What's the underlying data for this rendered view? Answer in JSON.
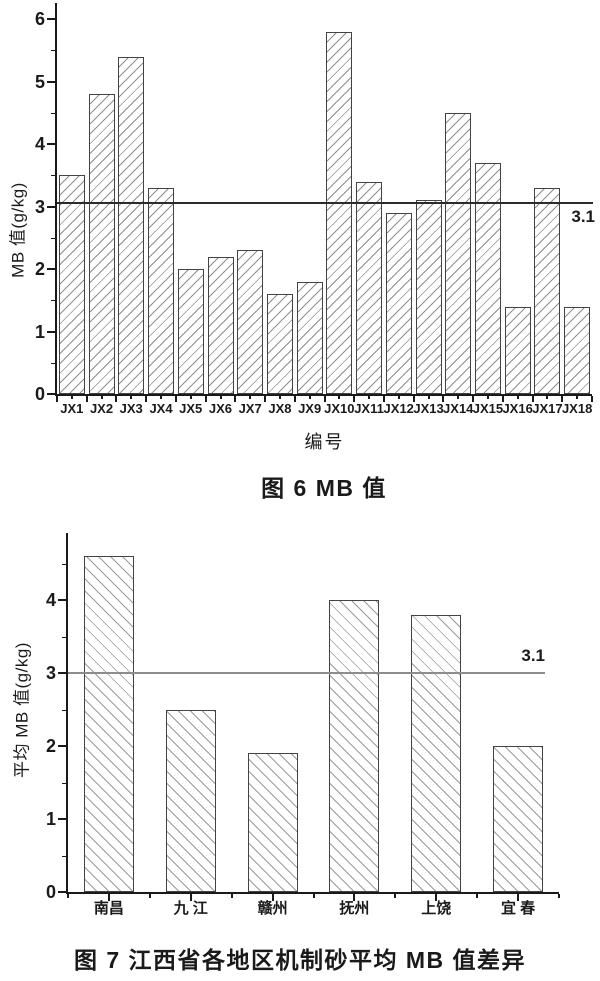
{
  "chart_data": [
    {
      "type": "bar",
      "title": "图 6  MB 值",
      "xlabel": "编号",
      "ylabel": "MB 值(g/kg)",
      "categories": [
        "JX1",
        "JX2",
        "JX3",
        "JX4",
        "JX5",
        "JX6",
        "JX7",
        "JX8",
        "JX9",
        "JX10",
        "JX11",
        "JX12",
        "JX13",
        "JX14",
        "JX15",
        "JX16",
        "JX17",
        "JX18"
      ],
      "values": [
        3.5,
        4.8,
        5.4,
        3.3,
        2.0,
        2.2,
        2.3,
        1.6,
        1.8,
        5.8,
        3.4,
        2.9,
        3.1,
        4.5,
        3.7,
        1.4,
        3.3,
        1.4
      ],
      "ylim": [
        0,
        6.26
      ],
      "yticks": [
        0,
        1,
        2,
        3,
        4,
        5,
        6
      ],
      "reference_line": {
        "value": 3.1,
        "label": "3.1"
      },
      "hatch": "/",
      "bar_fill": "#ffffff",
      "bar_border": "#434343",
      "hatch_color": "#8f8f8f",
      "axis_color": "#1a1a1a",
      "ref_line_color": "#2b2b2b",
      "grid": "off",
      "legend": "none"
    },
    {
      "type": "bar",
      "title": "图 7  江西省各地区机制砂平均 MB 值差异",
      "xlabel": "",
      "ylabel": "平均 MB 值(g/kg)",
      "categories": [
        "南昌",
        "九 江",
        "赣州",
        "抚州",
        "上饶",
        "宜 春"
      ],
      "values": [
        4.6,
        2.5,
        1.9,
        4.0,
        3.8,
        2.0
      ],
      "ylim": [
        0,
        4.92
      ],
      "yticks": [
        0,
        1,
        2,
        3,
        4
      ],
      "reference_line": {
        "value": 3.1,
        "label": "3.1"
      },
      "hatch": "\\",
      "bar_fill": "#ffffff",
      "bar_border": "#434343",
      "hatch_color": "#9a9a9a",
      "axis_color": "#1a1a1a",
      "ref_line_color": "#8d8d8d",
      "grid": "off",
      "legend": "none"
    }
  ]
}
